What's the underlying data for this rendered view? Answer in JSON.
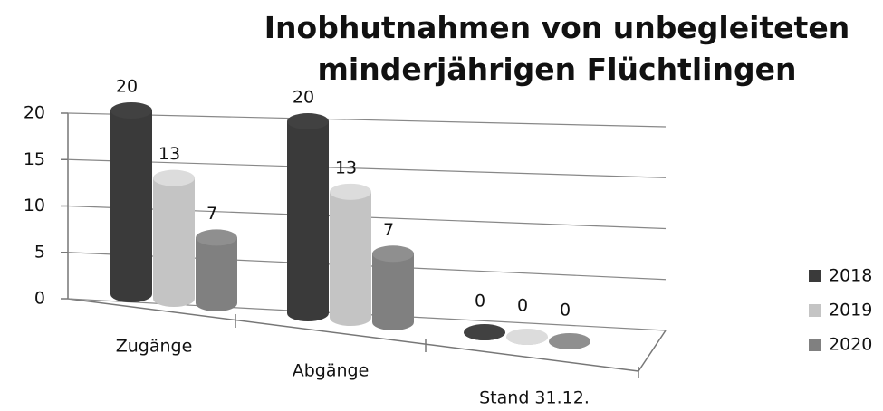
{
  "chart_data": {
    "type": "bar3d",
    "title": "Inobhutnahmen von unbegleiteten minderjährigen Flüchtlingen",
    "categories": [
      "Zugänge",
      "Abgänge",
      "Stand 31.12."
    ],
    "series": [
      {
        "name": "2018",
        "color": "#3a3a3a",
        "values": [
          20,
          20,
          0
        ]
      },
      {
        "name": "2019",
        "color": "#c4c4c4",
        "values": [
          13,
          13,
          0
        ]
      },
      {
        "name": "2020",
        "color": "#808080",
        "values": [
          7,
          7,
          0
        ]
      }
    ],
    "ylim": [
      0,
      20
    ],
    "yticks": [
      0,
      5,
      10,
      15,
      20
    ],
    "grid": true,
    "legend": "right"
  }
}
